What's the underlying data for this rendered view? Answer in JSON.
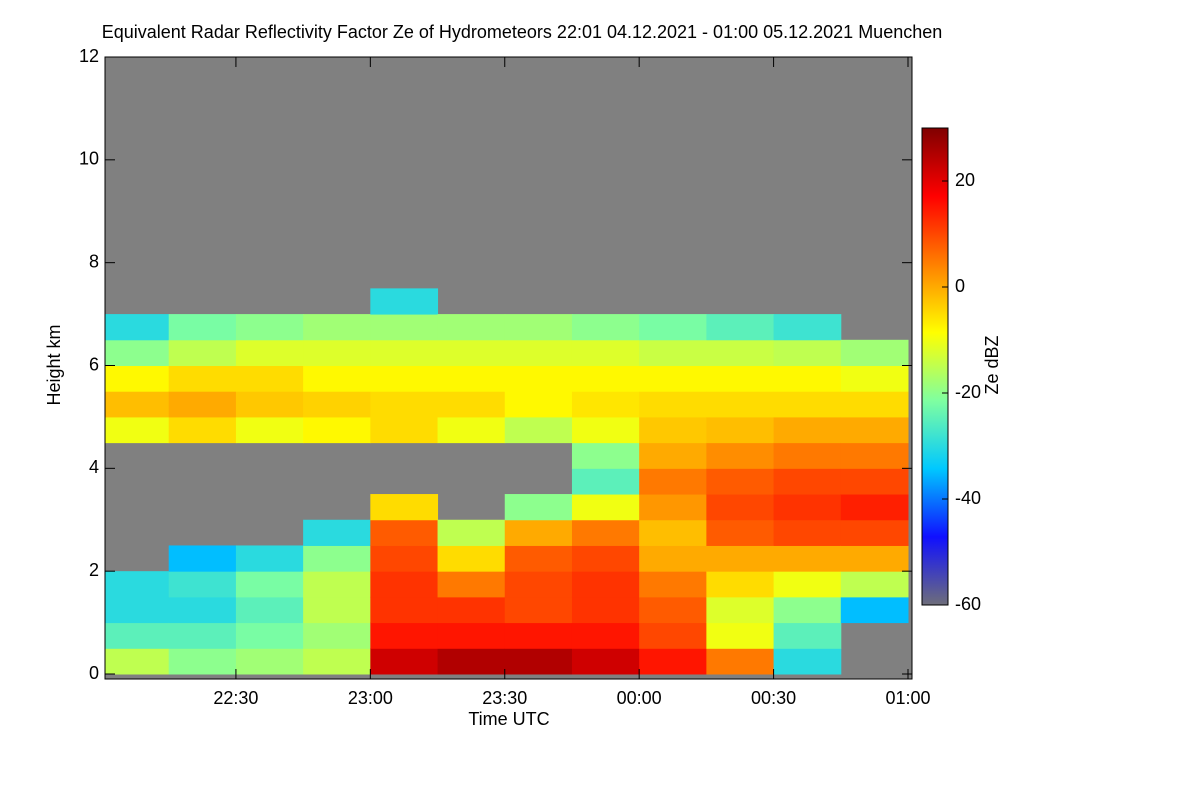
{
  "chart_data": {
    "type": "heatmap",
    "title": "Equivalent Radar Reflectivity Factor Ze of Hydrometeors   22:01 04.12.2021 - 01:00 05.12.2021 Muenchen",
    "x_label": "Time UTC",
    "y_label": "Height km",
    "colorbar_label": "Ze dBZ",
    "xlim": [
      22.0167,
      25
    ],
    "xticks": [
      {
        "value": 22.5,
        "label": "22:30"
      },
      {
        "value": 23,
        "label": "23:00"
      },
      {
        "value": 23.5,
        "label": "23:30"
      },
      {
        "value": 24,
        "label": "00:00"
      },
      {
        "value": 24.5,
        "label": "00:30"
      },
      {
        "value": 25,
        "label": "01:00"
      }
    ],
    "ylim": [
      0,
      12
    ],
    "yticks": [
      0,
      2,
      4,
      6,
      8,
      10,
      12
    ],
    "zlim": [
      -60,
      30
    ],
    "zticks": [
      -60,
      -40,
      -20,
      0,
      20
    ],
    "nodata_color": "#808080",
    "colormap": [
      "#6e6e7a",
      "#1010ff",
      "#00c8ff",
      "#7fffa0",
      "#ffff00",
      "#ff8000",
      "#ff0000",
      "#800000"
    ],
    "x": [
      22.125,
      22.375,
      22.625,
      22.875,
      23.125,
      23.375,
      23.625,
      23.875,
      24.125,
      24.375,
      24.625,
      24.875
    ],
    "y": [
      0.25,
      0.75,
      1.25,
      1.75,
      2.25,
      2.75,
      3.25,
      3.75,
      4.25,
      4.75,
      5.25,
      5.75,
      6.25,
      6.75,
      7.25
    ],
    "values": [
      [
        -15,
        -25,
        -30,
        -30,
        null,
        null,
        null,
        null,
        null,
        -10,
        -2,
        -8,
        -20,
        -30,
        null
      ],
      [
        -20,
        -25,
        -30,
        -28,
        -35,
        null,
        null,
        null,
        null,
        -5,
        0,
        -5,
        -15,
        -22,
        null
      ],
      [
        -18,
        -22,
        -25,
        -22,
        -30,
        null,
        null,
        null,
        null,
        -10,
        -3,
        -5,
        -12,
        -20,
        null
      ],
      [
        -15,
        -18,
        -15,
        -15,
        -20,
        -30,
        null,
        null,
        null,
        -8,
        -4,
        -8,
        -12,
        -18,
        null
      ],
      [
        22,
        15,
        12,
        12,
        10,
        8,
        -5,
        null,
        null,
        -5,
        -5,
        -8,
        -12,
        -18,
        -30
      ],
      [
        25,
        15,
        12,
        5,
        -5,
        -15,
        null,
        null,
        null,
        -10,
        -5,
        -8,
        -12,
        -18,
        null
      ],
      [
        25,
        15,
        10,
        10,
        8,
        0,
        -20,
        null,
        null,
        -15,
        -8,
        -8,
        -12,
        -18,
        null
      ],
      [
        22,
        15,
        12,
        12,
        10,
        5,
        -10,
        -25,
        -20,
        -10,
        -6,
        -8,
        -12,
        -20,
        null
      ],
      [
        15,
        10,
        8,
        5,
        0,
        -2,
        2,
        5,
        0,
        -3,
        -5,
        -8,
        -14,
        -22,
        null
      ],
      [
        5,
        -10,
        -12,
        -5,
        0,
        8,
        10,
        8,
        3,
        -2,
        -5,
        -8,
        -14,
        -25,
        null
      ],
      [
        -30,
        -25,
        -20,
        -10,
        0,
        10,
        12,
        10,
        5,
        0,
        -5,
        -8,
        -15,
        -28,
        null
      ],
      [
        null,
        null,
        -35,
        -15,
        0,
        10,
        14,
        10,
        5,
        0,
        -5,
        -10,
        -18,
        null,
        null
      ]
    ]
  }
}
